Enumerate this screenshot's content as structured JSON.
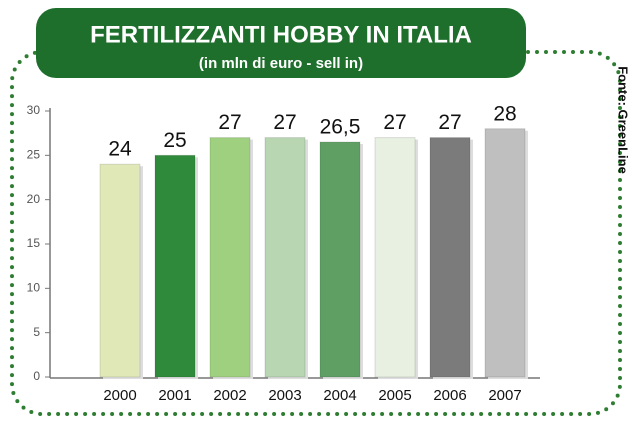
{
  "chart_data": {
    "type": "bar",
    "title": "FERTILIZZANTI HOBBY IN ITALIA",
    "subtitle": "(in mln di euro - sell in)",
    "source": "Fonte: GreenLine",
    "categories": [
      "2000",
      "2001",
      "2002",
      "2003",
      "2004",
      "2005",
      "2006",
      "2007"
    ],
    "values": [
      24,
      25,
      27,
      27,
      26.5,
      27,
      27,
      28
    ],
    "value_labels": [
      "24",
      "25",
      "27",
      "27",
      "26,5",
      "27",
      "27",
      "28"
    ],
    "colors": [
      "#dfe8b6",
      "#2f8a3b",
      "#9fd07f",
      "#b8d6b2",
      "#5f9f64",
      "#e8f1e1",
      "#7b7b7b",
      "#bfbfbf"
    ],
    "ylim": [
      0,
      30
    ],
    "yticks": [
      0,
      5,
      10,
      15,
      20,
      25,
      30
    ]
  }
}
